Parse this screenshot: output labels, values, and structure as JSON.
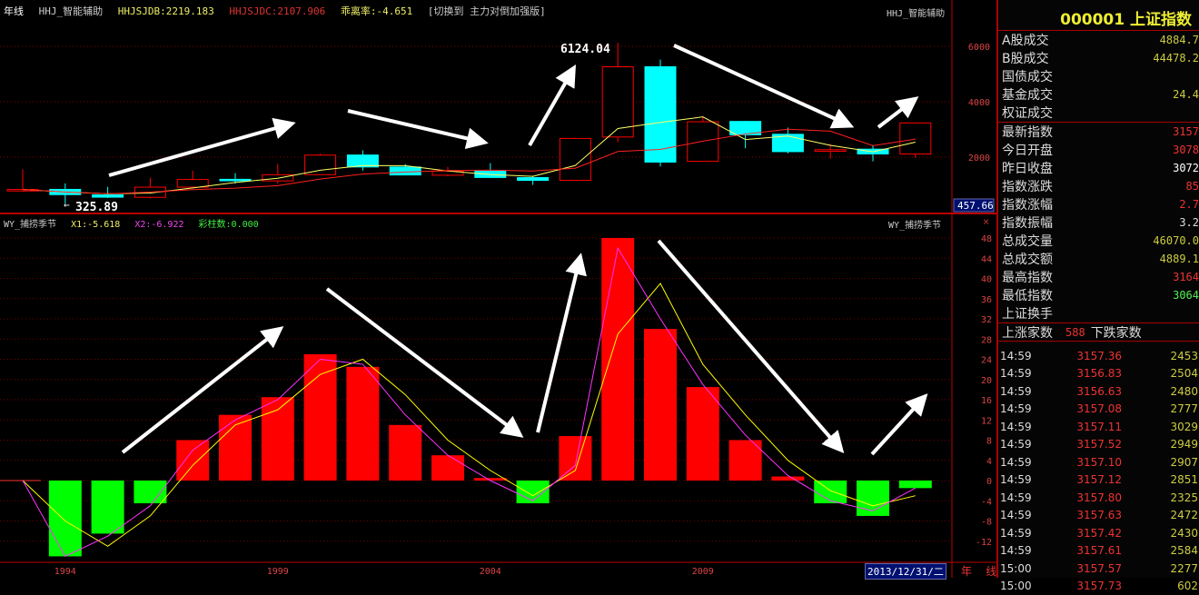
{
  "top_header": {
    "period": "年线",
    "indicator": "HHJ_智能辅助",
    "hhjsjdb": "HHJSJDB:2219.183",
    "hhjsjdc": "HHJSJDC:2107.906",
    "deviation": "乖离率:-4.651",
    "switch": "[切换到 主力对倒加强版]",
    "right_label": "HHJ_智能辅助"
  },
  "bottom_header": {
    "indicator": "WY_捕捞季节",
    "x1": "X1:-5.618",
    "x2": "X2:-6.922",
    "colored_bars": "彩柱数:0.000",
    "right_label": "WY_捕捞季节"
  },
  "annotations": {
    "high": "6124.04",
    "low": "325.89"
  },
  "price_axis": {
    "ticks": [
      "6000",
      "4000",
      "2000"
    ],
    "cursor_value": "457.66"
  },
  "osc_axis": {
    "ticks": [
      "48",
      "44",
      "40",
      "36",
      "32",
      "28",
      "24",
      "20",
      "16",
      "12",
      "8",
      "4",
      "0",
      "-4",
      "-8",
      "-12"
    ]
  },
  "x_axis": {
    "labels": [
      "1994",
      "1999",
      "2004",
      "2009"
    ]
  },
  "footer": {
    "date": "2013/12/31/二",
    "period": "年 线"
  },
  "colors": {
    "up": "#ff0000",
    "down": "#00ffff",
    "osc_pos": "#ff0000",
    "osc_neg": "#00ff00",
    "x1": "#ffff00",
    "x2": "#ff33ff",
    "ma_short": "#ffff66",
    "ma_long": "#ff2020"
  },
  "chart_data": {
    "years": [
      1993,
      1994,
      1995,
      1996,
      1997,
      1998,
      1999,
      2000,
      2001,
      2002,
      2003,
      2004,
      2005,
      2006,
      2007,
      2008,
      2009,
      2010,
      2011,
      2012,
      2013,
      2014
    ],
    "ohlc": [
      [
        780,
        1558,
        750,
        833
      ],
      [
        837,
        1053,
        326,
        648
      ],
      [
        638,
        927,
        525,
        555
      ],
      [
        550,
        1258,
        512,
        917
      ],
      [
        917,
        1510,
        870,
        1194
      ],
      [
        1200,
        1422,
        1043,
        1147
      ],
      [
        1144,
        1757,
        1047,
        1367
      ],
      [
        1368,
        2125,
        1361,
        2073
      ],
      [
        2077,
        2245,
        1514,
        1646
      ],
      [
        1644,
        1748,
        1339,
        1358
      ],
      [
        1347,
        1649,
        1307,
        1497
      ],
      [
        1492,
        1783,
        1259,
        1266
      ],
      [
        1261,
        1329,
        998,
        1161
      ],
      [
        1163,
        2698,
        1161,
        2675
      ],
      [
        2728,
        6124,
        2541,
        5262
      ],
      [
        5265,
        5522,
        1664,
        1821
      ],
      [
        1849,
        3478,
        1844,
        3277
      ],
      [
        3289,
        3306,
        2319,
        2808
      ],
      [
        2825,
        3067,
        2134,
        2199
      ],
      [
        2212,
        2478,
        1949,
        2269
      ],
      [
        2289,
        2444,
        1849,
        2116
      ],
      [
        2112,
        3239,
        1974,
        3235
      ]
    ],
    "osc_bars": [
      null,
      -15,
      -10.5,
      -4.5,
      8,
      13,
      16.5,
      25,
      22.5,
      11,
      5,
      0.5,
      -4.5,
      8.8,
      48,
      30,
      18.5,
      8,
      0.8,
      -4.5,
      -7,
      -1.5
    ],
    "x1": [
      0,
      -8,
      -13,
      -7,
      3,
      11,
      14,
      21,
      24,
      17,
      8,
      2,
      -3,
      2,
      29,
      39,
      23,
      13,
      4,
      -2,
      -5,
      -3
    ],
    "x2": [
      0,
      -15,
      -11,
      -5,
      6,
      12,
      16,
      24,
      23,
      13,
      5,
      0,
      -4,
      3,
      46,
      32,
      19,
      9,
      1,
      -4,
      -6,
      -1.5
    ],
    "price_ylim": [
      0,
      7600
    ],
    "osc_ylim": [
      -16,
      49
    ]
  },
  "panel": {
    "title": "000001 上证指数",
    "group1": [
      {
        "label": "A股成交",
        "value": "4884.7"
      },
      {
        "label": "B股成交",
        "value": "44478.2"
      },
      {
        "label": "国债成交",
        "value": ""
      },
      {
        "label": "基金成交",
        "value": "24.4"
      },
      {
        "label": "权证成交",
        "value": ""
      }
    ],
    "group2": [
      {
        "label": "最新指数",
        "value": "3157",
        "color": "#e33"
      },
      {
        "label": "今日开盘",
        "value": "3078",
        "color": "#e33"
      },
      {
        "label": "昨日收盘",
        "value": "3072",
        "color": "#fff"
      },
      {
        "label": "指数涨跌",
        "value": "85",
        "color": "#e33"
      },
      {
        "label": "指数涨幅",
        "value": "2.7",
        "color": "#e33"
      },
      {
        "label": "指数振幅",
        "value": "3.2",
        "color": "#ddd"
      },
      {
        "label": "总成交量",
        "value": "46070.0",
        "color": "#cc4"
      },
      {
        "label": "总成交额",
        "value": "4889.1",
        "color": "#cc4"
      },
      {
        "label": "最高指数",
        "value": "3164",
        "color": "#e33"
      },
      {
        "label": "最低指数",
        "value": "3064",
        "color": "#5e5"
      },
      {
        "label": "上证换手",
        "value": "",
        "color": "#ddd"
      }
    ],
    "updown": {
      "up_label": "上涨家数",
      "up_value": "588",
      "down_label": "下跌家数"
    },
    "ticks": [
      [
        "14:59",
        "3157.36",
        "2453"
      ],
      [
        "14:59",
        "3156.83",
        "2504"
      ],
      [
        "14:59",
        "3156.63",
        "2480"
      ],
      [
        "14:59",
        "3157.08",
        "2777"
      ],
      [
        "14:59",
        "3157.11",
        "3029"
      ],
      [
        "14:59",
        "3157.52",
        "2949"
      ],
      [
        "14:59",
        "3157.10",
        "2907"
      ],
      [
        "14:59",
        "3157.12",
        "2851"
      ],
      [
        "14:59",
        "3157.80",
        "2325"
      ],
      [
        "14:59",
        "3157.63",
        "2472"
      ],
      [
        "14:59",
        "3157.42",
        "2430"
      ],
      [
        "14:59",
        "3157.61",
        "2584"
      ],
      [
        "15:00",
        "3157.57",
        "2277"
      ],
      [
        "15:00",
        "3157.73",
        "602"
      ]
    ]
  }
}
